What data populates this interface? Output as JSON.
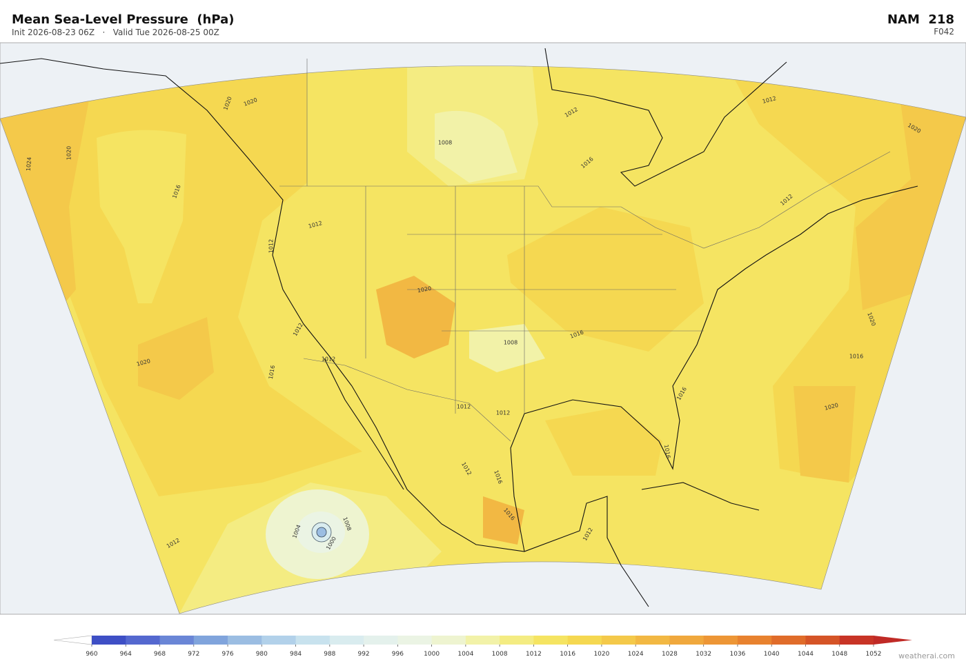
{
  "header": {
    "title": "Mean Sea-Level Pressure  (hPa)",
    "subtitle": "Init 2026-08-23 06Z   ·   Valid Tue 2026-08-25 00Z",
    "model": "NAM  218",
    "forecast": "F042"
  },
  "contour_labels": [
    1020,
    1020,
    1020,
    1024,
    1016,
    1008,
    1012,
    1016,
    1012,
    1020,
    1012,
    1012,
    1012,
    1020,
    1008,
    1016,
    1012,
    1012,
    1020,
    1016,
    1020,
    1016,
    1016,
    1020,
    1012,
    1012,
    1016,
    1016,
    1012,
    1016,
    1012,
    1004,
    1008,
    1000,
    1012
  ],
  "colorbar": {
    "ticks": [
      960,
      964,
      968,
      972,
      976,
      980,
      984,
      988,
      992,
      996,
      1000,
      1004,
      1008,
      1012,
      1016,
      1020,
      1024,
      1028,
      1032,
      1036,
      1040,
      1044,
      1048,
      1052
    ],
    "colors": [
      "#3e4fc5",
      "#5468cf",
      "#6a86d6",
      "#80a4dc",
      "#9bbde2",
      "#b2d1ea",
      "#c8e2ee",
      "#d9ecef",
      "#e4f1ec",
      "#ebf4e4",
      "#eef4d0",
      "#f2f2a8",
      "#f4ec82",
      "#f5e462",
      "#f5d851",
      "#f4c94a",
      "#f2b843",
      "#f0a83d",
      "#ed9636",
      "#e8822f",
      "#e06c2a",
      "#d55427",
      "#c83426"
    ],
    "under_color": "#ffffff",
    "over_color": "#c02a26"
  },
  "credit": "weatherai.com"
}
